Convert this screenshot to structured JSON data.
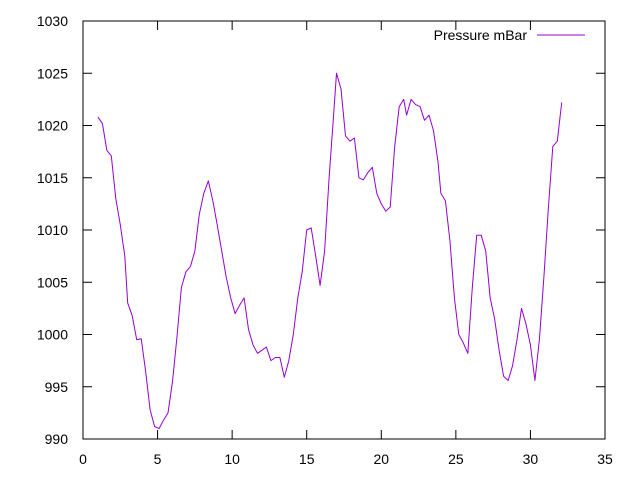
{
  "chart_data": {
    "type": "line",
    "title": "",
    "xlabel": "",
    "ylabel": "",
    "xlim": [
      0,
      35
    ],
    "ylim": [
      990,
      1030
    ],
    "x_ticks": [
      0,
      5,
      10,
      15,
      20,
      25,
      30,
      35
    ],
    "y_ticks": [
      990,
      995,
      1000,
      1005,
      1010,
      1015,
      1020,
      1025,
      1030
    ],
    "grid": false,
    "legend_position": "top-right",
    "series": [
      {
        "name": "Pressure mBar",
        "color": "#9400d3",
        "points": [
          [
            1.0,
            1020.8
          ],
          [
            1.3,
            1020.2
          ],
          [
            1.6,
            1017.6
          ],
          [
            1.9,
            1017.1
          ],
          [
            2.2,
            1013.0
          ],
          [
            2.5,
            1010.5
          ],
          [
            2.8,
            1007.5
          ],
          [
            3.0,
            1003.0
          ],
          [
            3.3,
            1001.8
          ],
          [
            3.6,
            999.5
          ],
          [
            3.9,
            999.6
          ],
          [
            4.2,
            996.5
          ],
          [
            4.5,
            992.8
          ],
          [
            4.8,
            991.2
          ],
          [
            5.1,
            991.0
          ],
          [
            5.4,
            991.8
          ],
          [
            5.7,
            992.5
          ],
          [
            6.0,
            995.5
          ],
          [
            6.3,
            999.8
          ],
          [
            6.6,
            1004.5
          ],
          [
            6.9,
            1006.0
          ],
          [
            7.2,
            1006.5
          ],
          [
            7.5,
            1008.0
          ],
          [
            7.8,
            1011.5
          ],
          [
            8.1,
            1013.5
          ],
          [
            8.4,
            1014.7
          ],
          [
            8.7,
            1012.8
          ],
          [
            9.0,
            1010.5
          ],
          [
            9.3,
            1008.0
          ],
          [
            9.6,
            1005.5
          ],
          [
            9.9,
            1003.5
          ],
          [
            10.2,
            1002.0
          ],
          [
            10.5,
            1002.8
          ],
          [
            10.8,
            1003.5
          ],
          [
            11.1,
            1000.5
          ],
          [
            11.4,
            999.0
          ],
          [
            11.7,
            998.2
          ],
          [
            12.0,
            998.5
          ],
          [
            12.3,
            998.8
          ],
          [
            12.6,
            997.5
          ],
          [
            12.9,
            997.8
          ],
          [
            13.2,
            997.8
          ],
          [
            13.5,
            995.9
          ],
          [
            13.8,
            997.5
          ],
          [
            14.1,
            1000.0
          ],
          [
            14.4,
            1003.5
          ],
          [
            14.7,
            1006.0
          ],
          [
            15.0,
            1010.0
          ],
          [
            15.3,
            1010.2
          ],
          [
            15.6,
            1007.5
          ],
          [
            15.9,
            1004.7
          ],
          [
            16.2,
            1008.0
          ],
          [
            16.5,
            1015.0
          ],
          [
            16.8,
            1021.0
          ],
          [
            17.0,
            1025.0
          ],
          [
            17.3,
            1023.5
          ],
          [
            17.6,
            1019.0
          ],
          [
            17.9,
            1018.5
          ],
          [
            18.2,
            1018.8
          ],
          [
            18.5,
            1015.0
          ],
          [
            18.8,
            1014.8
          ],
          [
            19.1,
            1015.5
          ],
          [
            19.4,
            1016.0
          ],
          [
            19.7,
            1013.5
          ],
          [
            20.0,
            1012.5
          ],
          [
            20.3,
            1011.8
          ],
          [
            20.6,
            1012.2
          ],
          [
            20.9,
            1018.0
          ],
          [
            21.2,
            1021.8
          ],
          [
            21.5,
            1022.5
          ],
          [
            21.7,
            1021.0
          ],
          [
            22.0,
            1022.5
          ],
          [
            22.3,
            1022.0
          ],
          [
            22.6,
            1021.8
          ],
          [
            22.9,
            1020.5
          ],
          [
            23.2,
            1021.0
          ],
          [
            23.5,
            1019.5
          ],
          [
            23.8,
            1016.5
          ],
          [
            24.0,
            1013.5
          ],
          [
            24.3,
            1012.8
          ],
          [
            24.6,
            1009.0
          ],
          [
            24.9,
            1003.5
          ],
          [
            25.2,
            1000.0
          ],
          [
            25.5,
            999.2
          ],
          [
            25.8,
            998.2
          ],
          [
            26.1,
            1004.5
          ],
          [
            26.4,
            1009.5
          ],
          [
            26.7,
            1009.5
          ],
          [
            27.0,
            1008.0
          ],
          [
            27.3,
            1003.5
          ],
          [
            27.6,
            1001.5
          ],
          [
            27.9,
            998.5
          ],
          [
            28.2,
            996.0
          ],
          [
            28.5,
            995.6
          ],
          [
            28.8,
            997.0
          ],
          [
            29.1,
            999.5
          ],
          [
            29.4,
            1002.5
          ],
          [
            29.7,
            1001.0
          ],
          [
            30.0,
            999.0
          ],
          [
            30.3,
            995.6
          ],
          [
            30.6,
            999.5
          ],
          [
            30.9,
            1005.5
          ],
          [
            31.2,
            1012.0
          ],
          [
            31.5,
            1018.0
          ],
          [
            31.8,
            1018.5
          ],
          [
            32.1,
            1022.2
          ]
        ]
      }
    ]
  }
}
